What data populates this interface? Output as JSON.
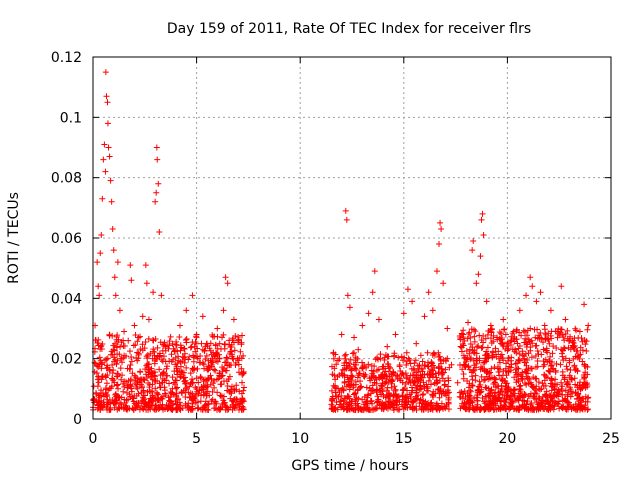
{
  "chart_data": {
    "type": "scatter",
    "title": "Day 159 of 2011, Rate Of TEC Index for receiver flrs",
    "xlabel": "GPS time / hours",
    "ylabel": "ROTI / TECUs",
    "xlim": [
      0,
      25
    ],
    "ylim": [
      0,
      0.12
    ],
    "x_ticks": [
      0,
      5,
      10,
      15,
      20,
      25
    ],
    "x_tick_labels": [
      "0",
      "5",
      "10",
      "15",
      "20",
      "25"
    ],
    "y_ticks": [
      0,
      0.02,
      0.04,
      0.06,
      0.08,
      0.1,
      0.12
    ],
    "y_tick_labels": [
      "0",
      "0.02",
      "0.04",
      "0.06",
      "0.08",
      "0.1",
      "0.12"
    ],
    "grid": true,
    "marker": "+",
    "color": "#ff0000",
    "data_gap_hours": [
      7.3,
      11.5
    ],
    "series": [
      {
        "name": "ROTI",
        "points": [
          [
            0.1,
            0.031
          ],
          [
            0.2,
            0.052
          ],
          [
            0.25,
            0.044
          ],
          [
            0.3,
            0.041
          ],
          [
            0.35,
            0.055
          ],
          [
            0.4,
            0.061
          ],
          [
            0.45,
            0.073
          ],
          [
            0.5,
            0.086
          ],
          [
            0.55,
            0.091
          ],
          [
            0.6,
            0.082
          ],
          [
            0.62,
            0.115
          ],
          [
            0.65,
            0.107
          ],
          [
            0.7,
            0.105
          ],
          [
            0.72,
            0.098
          ],
          [
            0.75,
            0.09
          ],
          [
            0.8,
            0.087
          ],
          [
            0.85,
            0.079
          ],
          [
            0.9,
            0.072
          ],
          [
            0.95,
            0.063
          ],
          [
            1.0,
            0.056
          ],
          [
            1.05,
            0.047
          ],
          [
            1.1,
            0.041
          ],
          [
            1.2,
            0.052
          ],
          [
            1.3,
            0.036
          ],
          [
            1.5,
            0.029
          ],
          [
            1.7,
            0.026
          ],
          [
            1.8,
            0.051
          ],
          [
            1.85,
            0.046
          ],
          [
            2.0,
            0.031
          ],
          [
            2.2,
            0.027
          ],
          [
            2.4,
            0.034
          ],
          [
            2.55,
            0.051
          ],
          [
            2.6,
            0.045
          ],
          [
            2.7,
            0.033
          ],
          [
            2.9,
            0.042
          ],
          [
            3.0,
            0.072
          ],
          [
            3.05,
            0.075
          ],
          [
            3.08,
            0.09
          ],
          [
            3.1,
            0.086
          ],
          [
            3.15,
            0.078
          ],
          [
            3.2,
            0.062
          ],
          [
            3.3,
            0.041
          ],
          [
            3.5,
            0.024
          ],
          [
            3.8,
            0.019
          ],
          [
            4.2,
            0.031
          ],
          [
            4.5,
            0.036
          ],
          [
            4.8,
            0.041
          ],
          [
            5.0,
            0.028
          ],
          [
            5.3,
            0.034
          ],
          [
            5.5,
            0.025
          ],
          [
            5.8,
            0.022
          ],
          [
            6.0,
            0.03
          ],
          [
            6.3,
            0.036
          ],
          [
            6.4,
            0.047
          ],
          [
            6.5,
            0.045
          ],
          [
            6.8,
            0.033
          ],
          [
            7.0,
            0.026
          ],
          [
            7.2,
            0.015
          ],
          [
            11.8,
            0.014
          ],
          [
            12.0,
            0.028
          ],
          [
            12.2,
            0.069
          ],
          [
            12.25,
            0.066
          ],
          [
            12.3,
            0.041
          ],
          [
            12.4,
            0.037
          ],
          [
            12.6,
            0.027
          ],
          [
            12.8,
            0.023
          ],
          [
            13.0,
            0.031
          ],
          [
            13.3,
            0.035
          ],
          [
            13.5,
            0.042
          ],
          [
            13.6,
            0.049
          ],
          [
            13.8,
            0.033
          ],
          [
            14.2,
            0.024
          ],
          [
            14.6,
            0.028
          ],
          [
            15.0,
            0.035
          ],
          [
            15.2,
            0.043
          ],
          [
            15.4,
            0.039
          ],
          [
            15.6,
            0.025
          ],
          [
            16.0,
            0.034
          ],
          [
            16.2,
            0.042
          ],
          [
            16.4,
            0.036
          ],
          [
            16.6,
            0.049
          ],
          [
            16.7,
            0.058
          ],
          [
            16.75,
            0.065
          ],
          [
            16.8,
            0.063
          ],
          [
            16.9,
            0.045
          ],
          [
            17.1,
            0.03
          ],
          [
            17.3,
            0.018
          ],
          [
            17.6,
            0.012
          ],
          [
            17.9,
            0.021
          ],
          [
            18.1,
            0.032
          ],
          [
            18.3,
            0.056
          ],
          [
            18.35,
            0.059
          ],
          [
            18.5,
            0.045
          ],
          [
            18.6,
            0.048
          ],
          [
            18.7,
            0.054
          ],
          [
            18.75,
            0.066
          ],
          [
            18.8,
            0.068
          ],
          [
            18.85,
            0.061
          ],
          [
            19.0,
            0.039
          ],
          [
            19.2,
            0.031
          ],
          [
            19.5,
            0.027
          ],
          [
            19.8,
            0.033
          ],
          [
            20.0,
            0.025
          ],
          [
            20.3,
            0.029
          ],
          [
            20.6,
            0.036
          ],
          [
            20.9,
            0.041
          ],
          [
            21.1,
            0.047
          ],
          [
            21.2,
            0.044
          ],
          [
            21.4,
            0.039
          ],
          [
            21.6,
            0.042
          ],
          [
            21.8,
            0.031
          ],
          [
            22.1,
            0.036
          ],
          [
            22.4,
            0.029
          ],
          [
            22.6,
            0.044
          ],
          [
            22.8,
            0.033
          ],
          [
            23.0,
            0.026
          ],
          [
            23.2,
            0.024
          ],
          [
            23.5,
            0.029
          ],
          [
            23.7,
            0.038
          ],
          [
            23.9,
            0.031
          ]
        ]
      }
    ],
    "dense_clusters": [
      {
        "x_range": [
          0.0,
          7.3
        ],
        "y_range": [
          0.003,
          0.028
        ],
        "count": 900
      },
      {
        "x_range": [
          11.5,
          17.2
        ],
        "y_range": [
          0.003,
          0.022
        ],
        "count": 650
      },
      {
        "x_range": [
          17.7,
          23.9
        ],
        "y_range": [
          0.003,
          0.03
        ],
        "count": 950
      }
    ]
  }
}
